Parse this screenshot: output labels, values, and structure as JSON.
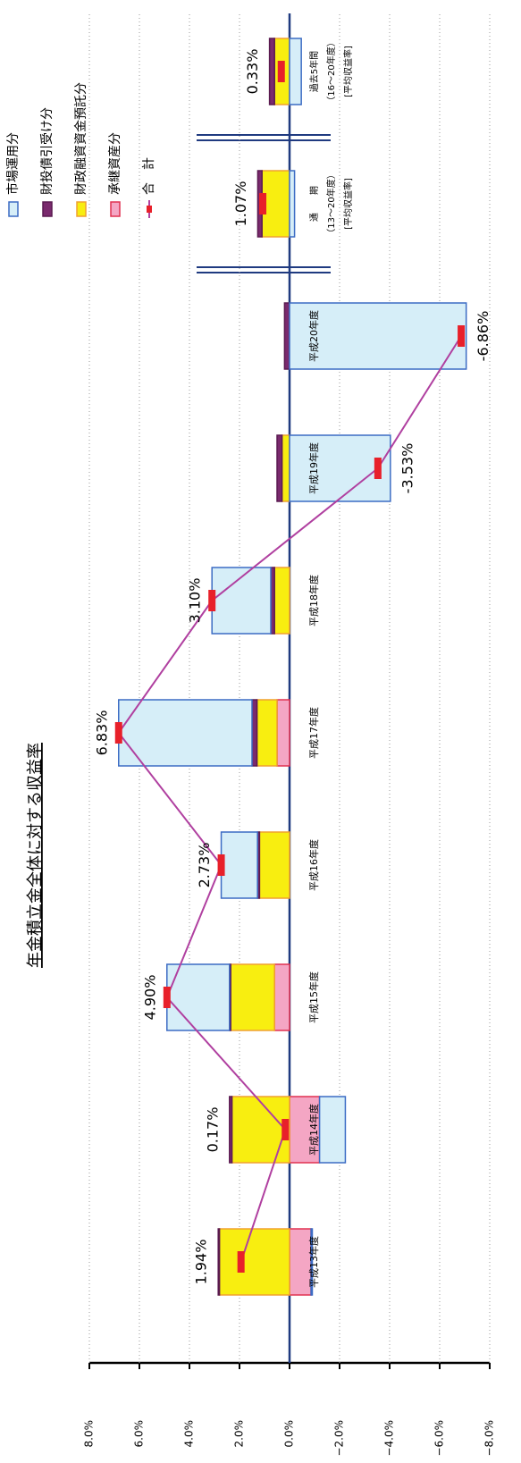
{
  "chart_data": {
    "type": "bar",
    "title": "年金積立金全体に対する収益率",
    "categories": [
      "平成13年度",
      "平成14年度",
      "平成15年度",
      "平成16年度",
      "平成17年度",
      "平成18年度",
      "平成19年度",
      "平成20年度",
      [
        "通　　期",
        "（13～20年度）",
        "[平均収益率]"
      ],
      [
        "過去5年間",
        "（16～20年度）",
        "[平均収益率]"
      ]
    ],
    "series": [
      {
        "name": "市場運用分",
        "color": "#d6eef8",
        "stroke": "#3c6cc4",
        "values": [
          -0.05,
          -1.03,
          2.5,
          1.45,
          5.33,
          2.35,
          -4.03,
          -7.06,
          -0.2,
          -0.47
        ]
      },
      {
        "name": "財投債引受け分",
        "color": "#7a2a6e",
        "stroke": "#5a1a50",
        "values": [
          0.05,
          0.1,
          0.05,
          0.08,
          0.2,
          0.15,
          0.2,
          0.2,
          0.17,
          0.2
        ]
      },
      {
        "name": "財政融資資金預託分",
        "color": "#f8ee10",
        "stroke": "#f0a030",
        "values": [
          2.8,
          2.3,
          1.75,
          1.2,
          0.8,
          0.6,
          0.3,
          0,
          1.1,
          0.6
        ]
      },
      {
        "name": "承継資産分",
        "color": "#f4a6c4",
        "stroke": "#e03050",
        "values": [
          -0.86,
          -1.2,
          0.6,
          0,
          0.5,
          0,
          0,
          0,
          0,
          0
        ]
      },
      {
        "name": "合　計",
        "type": "line",
        "color": "#b040a0",
        "marker_color": "#e8202a",
        "values": [
          1.94,
          0.17,
          4.9,
          2.73,
          6.83,
          3.1,
          -3.53,
          -6.86,
          1.07,
          0.33
        ],
        "value_labels": [
          "1.94%",
          "0.17%",
          "4.90%",
          "2.73%",
          "6.83%",
          "3.10%",
          "-3.53%",
          "-6.86%",
          "1.07%",
          "0.33%"
        ]
      }
    ],
    "ylim": [
      -8,
      8
    ],
    "yticks": [
      {
        "value": 8,
        "label": "8.0%"
      },
      {
        "value": 6,
        "label": "6.0%"
      },
      {
        "value": 4,
        "label": "4.0%"
      },
      {
        "value": 2,
        "label": "2.0%"
      },
      {
        "value": 0,
        "label": "0.0%"
      },
      {
        "value": -2,
        "label": "−2.0%"
      },
      {
        "value": -4,
        "label": "−4.0%"
      },
      {
        "value": -6,
        "label": "−6.0%"
      },
      {
        "value": -8,
        "label": "−8.0%"
      }
    ],
    "grid": true
  }
}
